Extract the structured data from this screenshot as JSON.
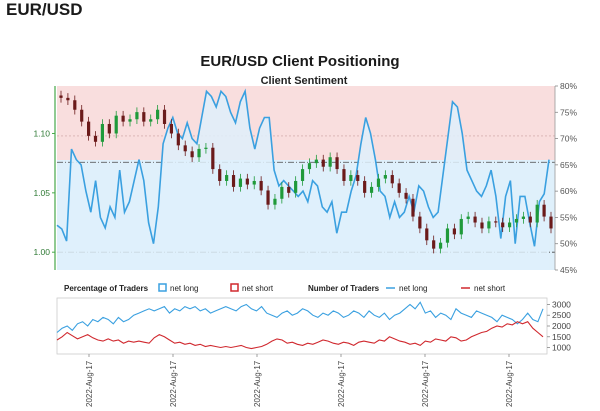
{
  "page": {
    "heading": "EUR/USD"
  },
  "chart_data": {
    "type": "line",
    "title": "EUR/USD Client Positioning",
    "subtitle": "Client Sentiment",
    "colors": {
      "net_long": "#3aa0e0",
      "net_short": "#d0282e",
      "candle_up": "#1f9a3a",
      "candle_down": "#6b1a1a",
      "bg_top": "#f9dede",
      "bg_bottom": "#dff0fb",
      "left_axis": "#47a84a"
    },
    "left_axis": {
      "ticks": [
        "1.00",
        "1.05",
        "1.10"
      ],
      "values": [
        1.0,
        1.05,
        1.1
      ],
      "ylim": [
        0.985,
        1.14
      ]
    },
    "right_axis": {
      "ticks": [
        "45%",
        "50%",
        "55%",
        "60%",
        "65%",
        "70%",
        "75%",
        "80%"
      ],
      "values": [
        45,
        50,
        55,
        60,
        65,
        70,
        75,
        80
      ],
      "ylim": [
        45,
        80
      ]
    },
    "ref_lines": {
      "price_level": 1.0,
      "pct_level": 65.5,
      "pct_mid": 70.5
    },
    "net_long_pct": [
      53.5,
      52.8,
      50.5,
      68,
      66,
      65,
      60,
      56,
      62,
      55,
      53,
      57,
      55,
      64,
      56,
      58,
      62,
      66,
      62,
      54,
      50,
      57,
      69,
      72,
      74,
      71,
      70,
      73,
      70,
      69,
      74,
      79,
      78,
      76,
      79,
      78,
      75,
      73,
      77,
      79,
      72,
      68,
      72,
      74,
      74,
      64,
      61,
      62,
      61,
      60,
      59,
      60,
      58,
      62,
      61,
      57,
      56,
      58,
      52,
      56,
      56,
      60,
      63,
      69,
      74,
      71,
      66,
      60,
      59,
      55,
      58,
      55,
      56,
      59,
      56,
      61,
      60,
      57,
      55,
      56,
      63,
      70,
      77,
      76,
      71,
      64,
      62,
      60,
      59,
      61,
      64,
      59,
      51,
      59,
      62,
      50,
      59,
      59,
      54,
      49.5,
      58,
      59.5,
      66
    ],
    "price_path": [
      1.13,
      1.128,
      1.12,
      1.11,
      1.098,
      1.093,
      1.108,
      1.1,
      1.115,
      1.11,
      1.112,
      1.118,
      1.11,
      1.112,
      1.12,
      1.108,
      1.1,
      1.09,
      1.085,
      1.08,
      1.087,
      1.088,
      1.07,
      1.06,
      1.065,
      1.055,
      1.062,
      1.057,
      1.06,
      1.052,
      1.04,
      1.045,
      1.055,
      1.05,
      1.06,
      1.07,
      1.075,
      1.078,
      1.072,
      1.08,
      1.07,
      1.06,
      1.065,
      1.06,
      1.05,
      1.055,
      1.062,
      1.065,
      1.058,
      1.05,
      1.045,
      1.03,
      1.02,
      1.01,
      1.003,
      1.008,
      1.02,
      1.015,
      1.028,
      1.03,
      1.025,
      1.02,
      1.026,
      1.025,
      1.021,
      1.025,
      1.028,
      1.03,
      1.025,
      1.04,
      1.03,
      1.02
    ],
    "bottom_panel": {
      "legend": {
        "pct_title": "Percentage of Traders",
        "pct_long": "net long",
        "pct_short": "net short",
        "num_title": "Number of Traders",
        "num_long": "net long",
        "num_short": "net short"
      },
      "ticks": [
        "1000",
        "1500",
        "2000",
        "2500",
        "3000"
      ],
      "values": [
        1000,
        1500,
        2000,
        2500,
        3000
      ],
      "ylim": [
        700,
        3300
      ],
      "net_long_traders": [
        1700,
        1900,
        2000,
        1800,
        2100,
        2200,
        2000,
        2300,
        2200,
        2400,
        2300,
        2100,
        2400,
        2200,
        2300,
        2500,
        2600,
        2700,
        2800,
        2700,
        2800,
        2900,
        2600,
        2800,
        2700,
        2900,
        2800,
        2900,
        2700,
        2800,
        2600,
        2700,
        2800,
        2900,
        2800,
        2700,
        2900,
        3000,
        2800,
        2700,
        2900,
        2600,
        2500,
        2400,
        2600,
        2700,
        2500,
        2600,
        2800,
        2700,
        2500,
        2400,
        2600,
        2500,
        2700,
        2600,
        2400,
        2500,
        2700,
        2600,
        2400,
        2700,
        2500,
        2400,
        2600,
        2300,
        2500,
        2600,
        2800,
        3000,
        2800,
        3100,
        2600,
        2700,
        2400,
        2600,
        2500,
        2300,
        2800,
        2600,
        2500,
        2400,
        2700,
        2600,
        2500,
        2400,
        2200,
        2500,
        2400,
        2300,
        2100,
        2300,
        2600,
        2300,
        2200,
        2800
      ],
      "net_short_traders": [
        1350,
        1500,
        1700,
        1550,
        1400,
        1500,
        1600,
        1450,
        1350,
        1300,
        1400,
        1300,
        1350,
        1200,
        1300,
        1250,
        1300,
        1250,
        1200,
        1450,
        1600,
        1500,
        1350,
        1200,
        1250,
        1150,
        1200,
        1100,
        1150,
        1050,
        1100,
        1050,
        1000,
        1050,
        1000,
        1050,
        1100,
        1000,
        950,
        1000,
        1050,
        1150,
        1300,
        1400,
        1350,
        1200,
        1250,
        1150,
        1100,
        1200,
        1150,
        1250,
        1350,
        1300,
        1200,
        1150,
        1250,
        1200,
        1100,
        1250,
        1300,
        1250,
        1200,
        1350,
        1300,
        1500,
        1400,
        1300,
        1250,
        1150,
        1200,
        1100,
        1300,
        1250,
        1400,
        1350,
        1300,
        1500,
        1450,
        1300,
        1350,
        1500,
        1600,
        1700,
        1750,
        1900,
        2000,
        1950,
        2100,
        2050,
        2200,
        2100,
        2200,
        1900,
        1700,
        1500
      ]
    },
    "x_ticks": [
      "2022-Aug-17",
      "2022-Aug-17",
      "2022-Aug-17",
      "2022-Aug-17",
      "2022-Aug-17",
      "2022-Aug-17"
    ]
  }
}
